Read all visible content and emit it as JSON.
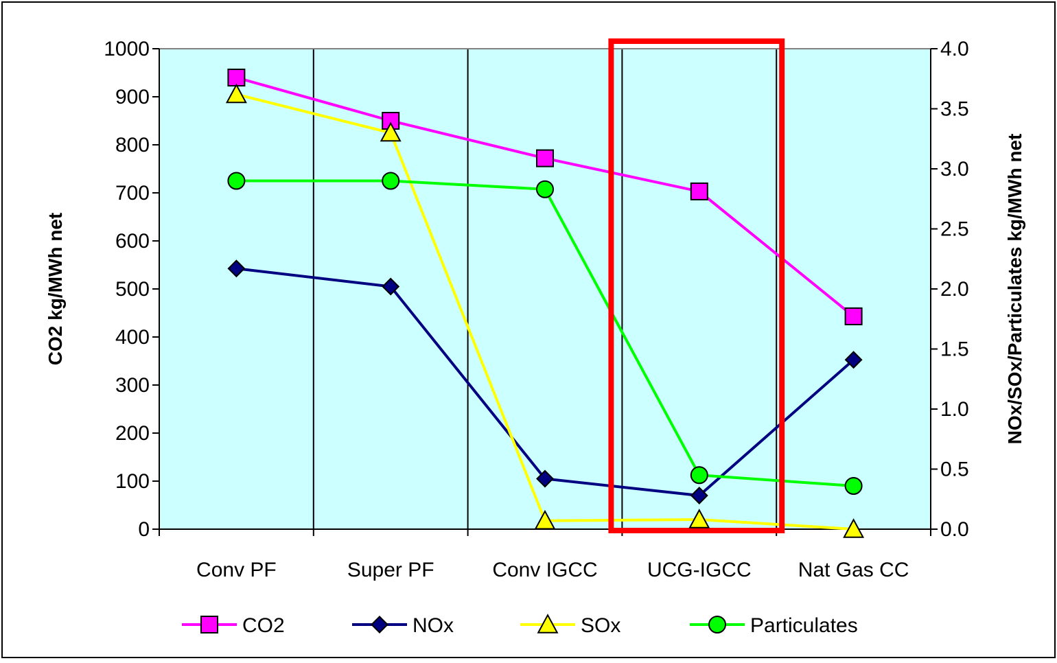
{
  "chart_data": {
    "type": "line",
    "categories": [
      "Conv PF",
      "Super PF",
      "Conv IGCC",
      "UCG-IGCC",
      "Nat Gas CC"
    ],
    "y_left": {
      "label": "CO2  kg/MWh net",
      "range": [
        0,
        1000
      ],
      "ticks": [
        "0",
        "100",
        "200",
        "300",
        "400",
        "500",
        "600",
        "700",
        "800",
        "900",
        "1000"
      ]
    },
    "y_right": {
      "label": "NOx/SOx/Particulates  kg/MWh net",
      "range": [
        0,
        4
      ],
      "ticks": [
        "0.0",
        "0.5",
        "1.0",
        "1.5",
        "2.0",
        "2.5",
        "3.0",
        "3.5",
        "4.0"
      ]
    },
    "series": [
      {
        "name": "CO2",
        "axis": "left",
        "values": [
          940,
          850,
          772,
          703,
          443
        ],
        "color": "#ff00ff",
        "marker": "square"
      },
      {
        "name": "NOx",
        "axis": "right",
        "values": [
          2.17,
          2.02,
          0.42,
          0.28,
          1.41
        ],
        "color": "#000080",
        "marker": "diamond"
      },
      {
        "name": "SOx",
        "axis": "right",
        "values": [
          3.62,
          3.3,
          0.07,
          0.08,
          0.0
        ],
        "color": "#ffff00",
        "marker": "triangle"
      },
      {
        "name": "Particulates",
        "axis": "right",
        "values": [
          2.9,
          2.9,
          2.83,
          0.45,
          0.36
        ],
        "color": "#00ff00",
        "marker": "circle"
      }
    ],
    "highlight_category": "UCG-IGCC",
    "highlight_color": "#ff0000",
    "plot_background": "#ccffff",
    "legend_position": "bottom",
    "grid": "vertical category separators"
  }
}
